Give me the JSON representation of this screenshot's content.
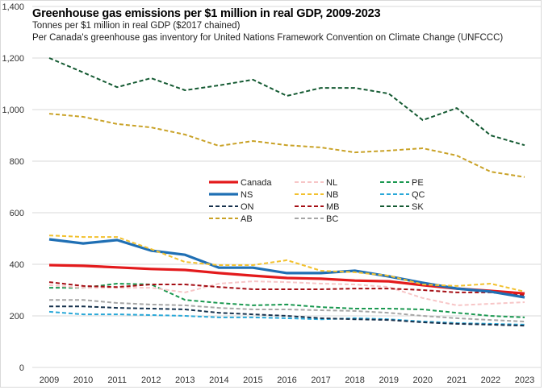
{
  "chart_data": {
    "type": "line",
    "title": "Greenhouse gas emissions per $1 million in real GDP, 2009-2023",
    "subtitle": "Tonnes per $1 million in real GDP ($2017 chained)",
    "subtitle2": "Per Canada's greenhouse gas inventory for United Nations Framework Convention on Climate Change (UNFCCC)",
    "xlabel": "",
    "ylabel": "",
    "ylim": [
      0,
      1400
    ],
    "yticks": [
      0,
      200,
      400,
      600,
      800,
      1000,
      1200,
      1400
    ],
    "ytick_labels": [
      "0",
      "200",
      "400",
      "600",
      "800",
      "1,000",
      "1,200",
      "1,400"
    ],
    "grid": true,
    "legend_position": "center",
    "categories": [
      "2009",
      "2010",
      "2011",
      "2012",
      "2013",
      "2014",
      "2015",
      "2016",
      "2017",
      "2018",
      "2019",
      "2020",
      "2021",
      "2022",
      "2023"
    ],
    "series": [
      {
        "name": "Canada",
        "color": "#e31a1c",
        "style": "solid",
        "values": [
          397,
          394,
          388,
          382,
          378,
          366,
          356,
          347,
          344,
          337,
          334,
          319,
          306,
          297,
          287
        ]
      },
      {
        "name": "NL",
        "color": "#f7c6c7",
        "style": "dashed",
        "values": [
          319,
          309,
          309,
          309,
          291,
          325,
          334,
          331,
          325,
          322,
          312,
          269,
          241,
          247,
          253
        ]
      },
      {
        "name": "PE",
        "color": "#1a9850",
        "style": "dashed",
        "values": [
          309,
          309,
          325,
          322,
          262,
          250,
          241,
          244,
          234,
          228,
          228,
          225,
          212,
          200,
          194
        ]
      },
      {
        "name": "NS",
        "color": "#1f6fb4",
        "style": "solid",
        "values": [
          497,
          481,
          494,
          453,
          437,
          387,
          387,
          366,
          366,
          375,
          353,
          328,
          306,
          294,
          272
        ]
      },
      {
        "name": "NB",
        "color": "#f2c12e",
        "style": "dashed",
        "values": [
          512,
          506,
          506,
          459,
          409,
          397,
          397,
          416,
          375,
          369,
          356,
          322,
          316,
          325,
          294
        ]
      },
      {
        "name": "QC",
        "color": "#29a8d8",
        "style": "dashed",
        "values": [
          216,
          206,
          206,
          203,
          200,
          194,
          194,
          191,
          187,
          191,
          187,
          178,
          172,
          169,
          166
        ]
      },
      {
        "name": "ON",
        "color": "#17324d",
        "style": "dashed",
        "values": [
          237,
          237,
          231,
          228,
          225,
          212,
          206,
          200,
          191,
          187,
          184,
          175,
          169,
          166,
          162
        ]
      },
      {
        "name": "MB",
        "color": "#a50f15",
        "style": "dashed",
        "values": [
          331,
          316,
          312,
          322,
          322,
          312,
          303,
          303,
          303,
          306,
          306,
          300,
          291,
          291,
          281
        ]
      },
      {
        "name": "SK",
        "color": "#145a32",
        "style": "dashed",
        "values": [
          1200,
          1144,
          1087,
          1122,
          1075,
          1094,
          1116,
          1053,
          1084,
          1084,
          1062,
          959,
          1006,
          900,
          862
        ]
      },
      {
        "name": "AB",
        "color": "#c9a227",
        "style": "dashed",
        "values": [
          984,
          972,
          944,
          931,
          903,
          859,
          878,
          862,
          853,
          834,
          841,
          850,
          822,
          759,
          738
        ]
      },
      {
        "name": "BC",
        "color": "#a6a6a6",
        "style": "dashed",
        "values": [
          262,
          262,
          250,
          244,
          241,
          231,
          225,
          225,
          222,
          219,
          212,
          200,
          191,
          184,
          178
        ]
      }
    ],
    "legend_order": [
      [
        "Canada",
        "NL",
        "PE"
      ],
      [
        "NS",
        "NB",
        "QC"
      ],
      [
        "ON",
        "MB",
        "SK"
      ],
      [
        "AB",
        "BC"
      ]
    ]
  }
}
